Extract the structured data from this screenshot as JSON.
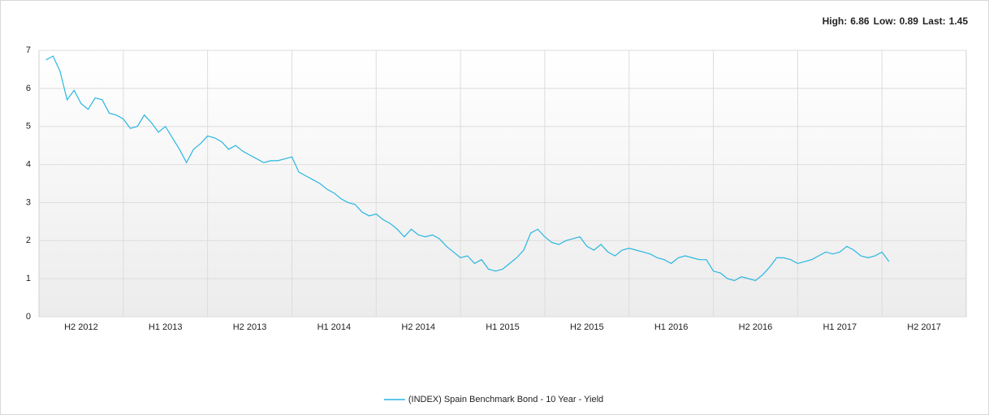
{
  "chart_data": {
    "type": "line",
    "summary": [
      {
        "label": "High:",
        "value": 6.86
      },
      {
        "label": "Low:",
        "value": 0.89
      },
      {
        "label": "Last:",
        "value": 1.45
      }
    ],
    "categories": [
      null,
      null,
      null,
      null,
      null,
      null,
      "H2 2012",
      null,
      null,
      null,
      null,
      null,
      null,
      null,
      null,
      null,
      null,
      null,
      "H1 2013",
      null,
      null,
      null,
      null,
      null,
      null,
      null,
      null,
      null,
      null,
      null,
      "H2 2013",
      null,
      null,
      null,
      null,
      null,
      null,
      null,
      null,
      null,
      null,
      null,
      "H1 2014",
      null,
      null,
      null,
      null,
      null,
      null,
      null,
      null,
      null,
      null,
      null,
      "H2 2014",
      null,
      null,
      null,
      null,
      null,
      null,
      null,
      null,
      null,
      null,
      null,
      "H1 2015",
      null,
      null,
      null,
      null,
      null,
      null,
      null,
      null,
      null,
      null,
      null,
      "H2 2015",
      null,
      null,
      null,
      null,
      null,
      null,
      null,
      null,
      null,
      null,
      null,
      "H1 2016",
      null,
      null,
      null,
      null,
      null,
      null,
      null,
      null,
      null,
      null,
      null,
      "H2 2016",
      null,
      null,
      null,
      null,
      null,
      null,
      null,
      null,
      null,
      null,
      null,
      "H1 2017",
      null,
      null,
      null,
      null,
      null,
      null,
      null,
      null,
      null,
      null,
      null,
      "H2 2017",
      null,
      null,
      null,
      null,
      null
    ],
    "series": [
      {
        "name": "(INDEX) Spain Benchmark Bond - 10 Year - Yield",
        "color": "#29b6e0",
        "values": [
          null,
          6.75,
          6.85,
          6.45,
          5.7,
          5.95,
          5.6,
          5.45,
          5.75,
          5.7,
          5.35,
          5.3,
          5.2,
          4.95,
          5.0,
          5.3,
          5.1,
          4.85,
          5.0,
          4.7,
          4.4,
          4.05,
          4.4,
          4.55,
          4.75,
          4.7,
          4.6,
          4.4,
          4.5,
          4.35,
          4.25,
          4.15,
          4.05,
          4.1,
          4.1,
          4.15,
          4.2,
          3.8,
          3.7,
          3.6,
          3.5,
          3.35,
          3.25,
          3.1,
          3.0,
          2.95,
          2.75,
          2.65,
          2.7,
          2.55,
          2.45,
          2.3,
          2.1,
          2.3,
          2.15,
          2.1,
          2.15,
          2.05,
          1.85,
          1.7,
          1.55,
          1.6,
          1.4,
          1.5,
          1.25,
          1.2,
          1.25,
          1.4,
          1.55,
          1.75,
          2.2,
          2.3,
          2.1,
          1.95,
          1.9,
          2.0,
          2.05,
          2.1,
          1.85,
          1.75,
          1.9,
          1.7,
          1.6,
          1.75,
          1.8,
          1.75,
          1.7,
          1.65,
          1.55,
          1.5,
          1.4,
          1.55,
          1.6,
          1.55,
          1.5,
          1.5,
          1.2,
          1.15,
          1.0,
          0.95,
          1.05,
          1.0,
          0.95,
          1.1,
          1.3,
          1.55,
          1.55,
          1.5,
          1.4,
          1.45,
          1.5,
          1.6,
          1.7,
          1.65,
          1.7,
          1.85,
          1.75,
          1.6,
          1.55,
          1.6,
          1.7,
          1.45,
          null,
          null,
          null,
          null,
          null,
          null,
          null,
          null,
          null,
          null
        ]
      }
    ],
    "ylim": [
      0,
      7
    ],
    "yticks": [
      0,
      1,
      2,
      3,
      4,
      5,
      6,
      7
    ],
    "grid": true
  }
}
